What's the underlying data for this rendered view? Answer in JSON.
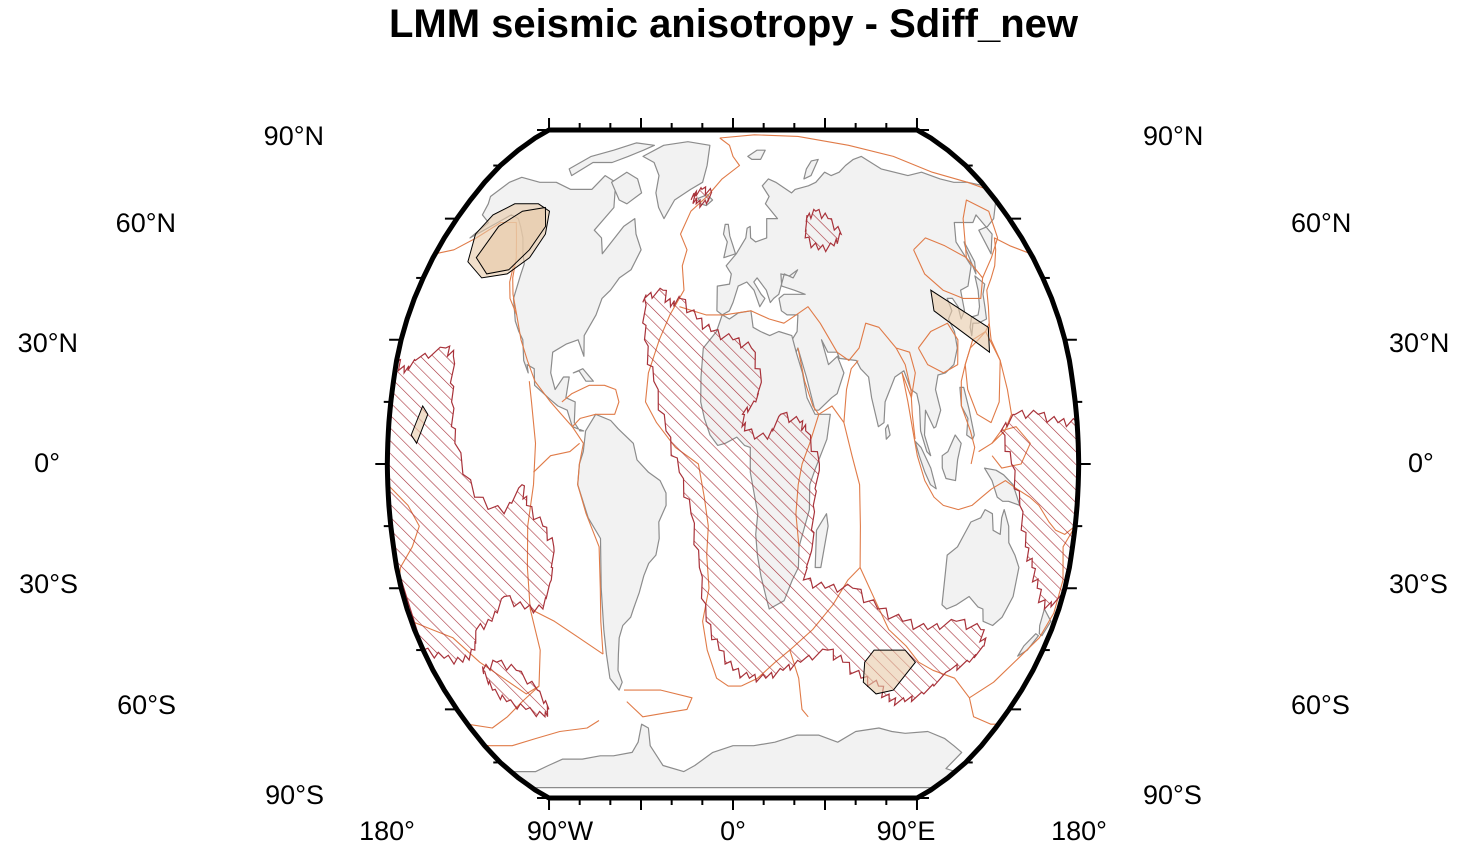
{
  "title": "LMM seismic anisotropy - Sdiff_new",
  "map": {
    "projection": "Robinson",
    "central_meridian": 0,
    "lat_labels_left": [
      "90°N",
      "60°N",
      "30°N",
      "0°",
      "30°S",
      "60°S",
      "90°S"
    ],
    "lat_labels_right": [
      "90°N",
      "60°N",
      "30°N",
      "0°",
      "30°S",
      "60°S",
      "90°S"
    ],
    "lon_labels": [
      "180°",
      "90°W",
      "0°",
      "90°E",
      "180°"
    ],
    "colors": {
      "land": "#f2f2f2",
      "coastline": "#8c8c8c",
      "plate_boundaries": "#e07b48",
      "llsvp_hatch": "#a8323a",
      "anisotropy_region_fill": "#e8c9a8",
      "anisotropy_region_edge": "#000000",
      "frame": "#000000"
    },
    "layers": [
      "land",
      "coastlines",
      "plate-boundaries",
      "llsvp-hatched-regions",
      "anisotropy-regions"
    ],
    "anisotropy_regions": [
      {
        "name": "alaska-region",
        "lon": [
          -158,
          -120
        ],
        "lat": [
          45,
          62
        ]
      },
      {
        "name": "hawaii-region",
        "lon": [
          -168,
          -160
        ],
        "lat": [
          5,
          14
        ]
      },
      {
        "name": "siberia-region",
        "lon": [
          110,
          138
        ],
        "lat": [
          25,
          44
        ]
      },
      {
        "name": "southern-ocean-region",
        "lon": [
          75,
          110
        ],
        "lat": [
          -55,
          -45
        ]
      }
    ]
  }
}
